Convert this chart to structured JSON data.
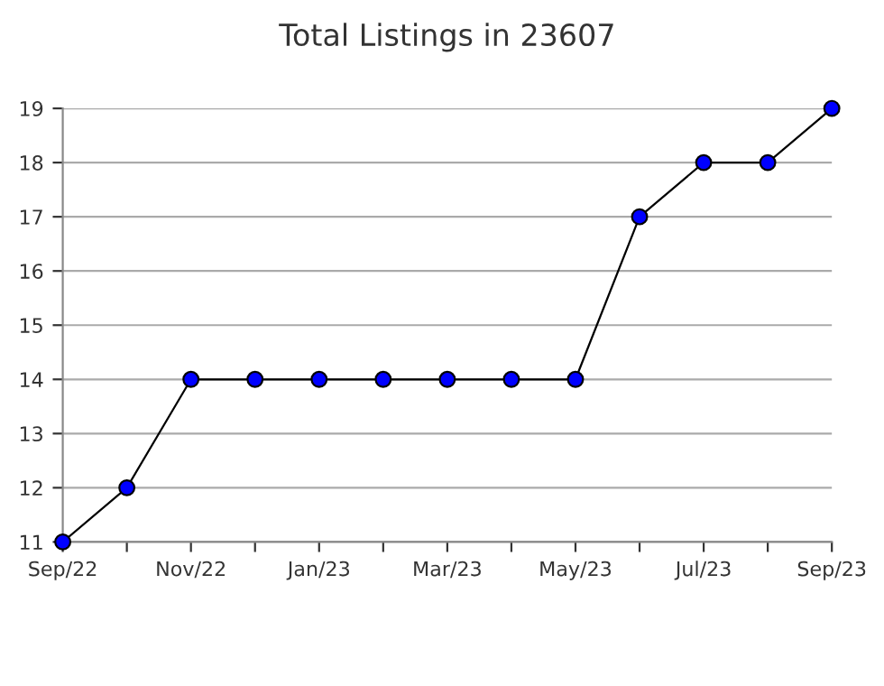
{
  "chart_data": {
    "type": "line",
    "title": "Total Listings in 23607",
    "categories": [
      "Sep/22",
      null,
      "Nov/22",
      null,
      "Jan/23",
      null,
      "Mar/23",
      null,
      "May/23",
      null,
      "Jul/23",
      null,
      "Sep/23"
    ],
    "series": [
      {
        "color": "#0000ff",
        "values": [
          11,
          12,
          14,
          14,
          14,
          14,
          14,
          14,
          14,
          17,
          18,
          18,
          19
        ]
      }
    ],
    "ylim": [
      11,
      19
    ],
    "yticks": [
      11,
      12,
      13,
      14,
      15,
      16,
      17,
      18,
      19
    ],
    "grid": "y",
    "marker": "circle",
    "line_style": "solid",
    "legend": false
  }
}
